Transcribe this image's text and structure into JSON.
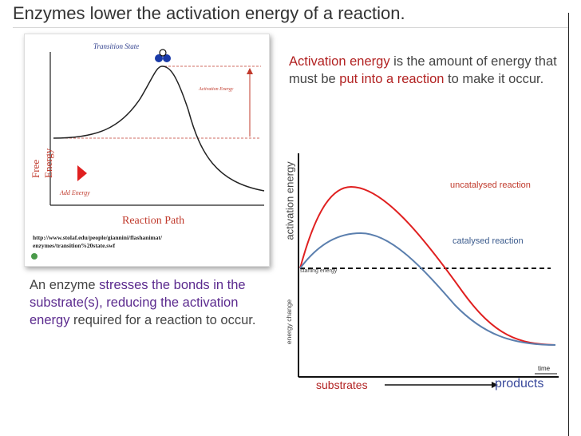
{
  "slide": {
    "title": "Enzymes lower the activation energy of a reaction."
  },
  "figure1": {
    "transition_state": "Transition State",
    "free_energy": "Free Energy",
    "activation_energy": "Activation Energy",
    "add_energy": "Add Energy",
    "reaction_path": "Reaction Path",
    "url_line1": "http://www.stolaf.edu/people/giannini/flashanimat/",
    "url_line2": "enzymes/transition%20state.swf"
  },
  "text1": {
    "p1": "Activation energy",
    "p2": " is the amount of energy that  must be ",
    "p3": "put into a reaction",
    "p4": " to make it occur."
  },
  "text2": {
    "p1": "An enzyme ",
    "p2": "stresses the bonds in the substrate(s), reducing the activation energy",
    "p3": " required for a reaction to occur."
  },
  "graph": {
    "y_label_top": "activation energy",
    "y_label_bottom": "energy change",
    "uncatalysed": "uncatalysed reaction",
    "catalysed": "catalysed reaction",
    "starting_energy": "starting energy",
    "time": "time",
    "substrates": "substrates",
    "products": "products"
  },
  "colors": {
    "red": "#e02020",
    "blue": "#5b7fae",
    "text_red": "#b22222",
    "purple": "#5b2a8e"
  }
}
